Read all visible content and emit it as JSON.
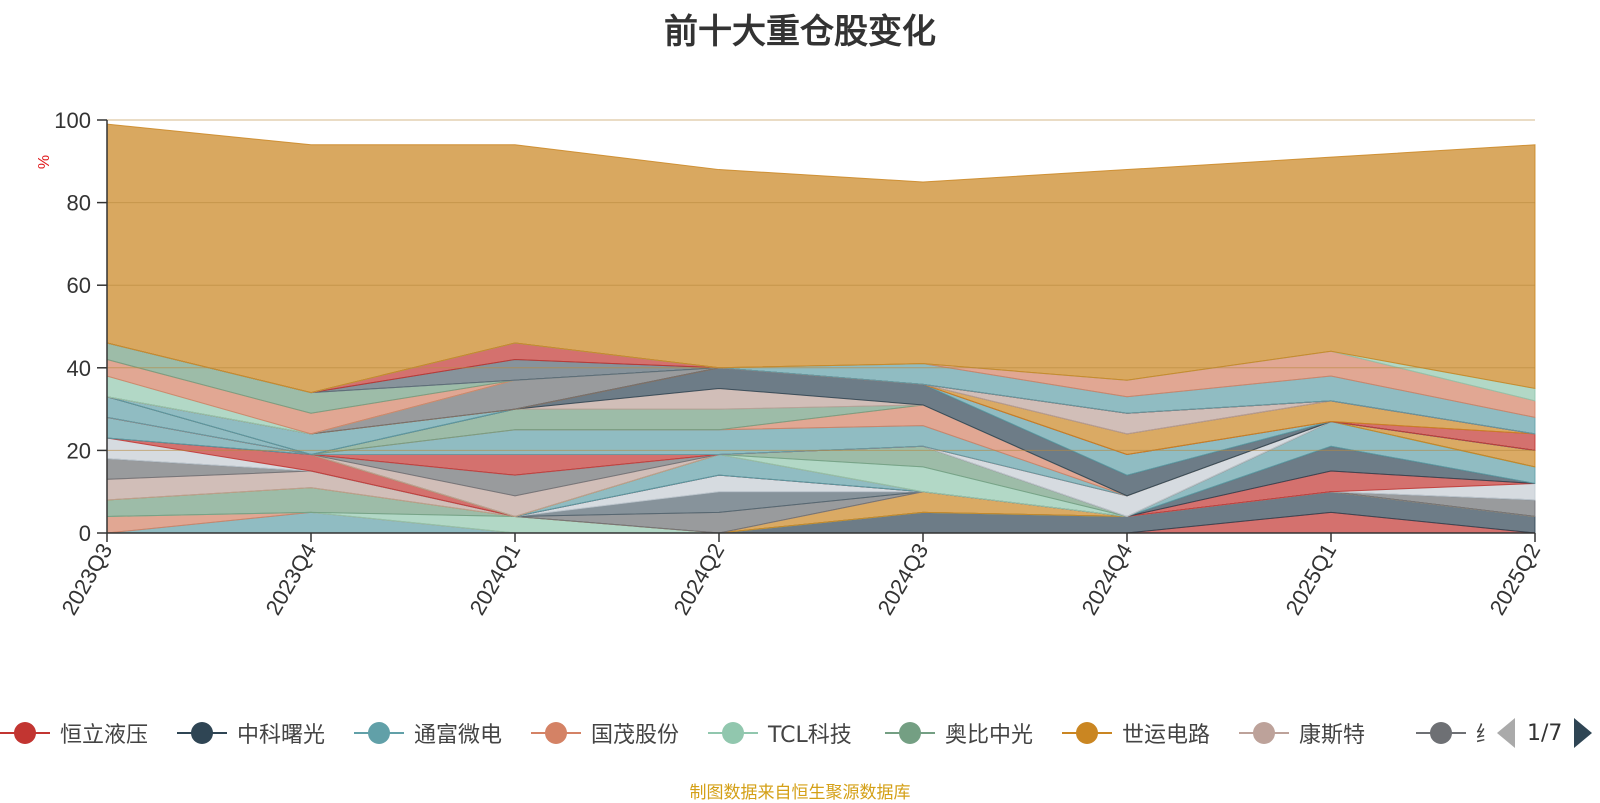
{
  "title": "前十大重仓股变化",
  "source": "制图数据来自恒生聚源数据库",
  "legend_pager": "1/7",
  "chart_data": {
    "type": "area",
    "stacked": true,
    "title": "前十大重仓股变化",
    "ylabel": "%",
    "ylim": [
      0,
      100
    ],
    "yticks": [
      0,
      20,
      40,
      60,
      80,
      100
    ],
    "grid": true,
    "legend_position": "bottom",
    "categories": [
      "2023Q3",
      "2023Q4",
      "2024Q1",
      "2024Q2",
      "2024Q3",
      "2024Q4",
      "2025Q1",
      "2025Q2"
    ],
    "series": [
      {
        "name": "恒立液压",
        "color": "#c23531",
        "values": [
          0,
          0,
          0,
          0,
          0,
          0,
          5,
          0
        ]
      },
      {
        "name": "中科曙光",
        "color": "#2f4554",
        "values": [
          0,
          0,
          0,
          0,
          5,
          4,
          5,
          4
        ]
      },
      {
        "name": "通富微电",
        "color": "#61a0a8",
        "values": [
          0,
          5,
          0,
          0,
          0,
          0,
          0,
          0
        ]
      },
      {
        "name": "国茂股份",
        "color": "#d48265",
        "values": [
          4,
          0,
          0,
          0,
          0,
          0,
          0,
          0
        ]
      },
      {
        "name": "TCL科技",
        "color": "#91c7ae",
        "values": [
          0,
          0,
          4,
          0,
          0,
          0,
          0,
          0
        ]
      },
      {
        "name": "奥比中光",
        "color": "#749f83",
        "values": [
          4,
          6,
          0,
          0,
          0,
          0,
          0,
          0
        ]
      },
      {
        "name": "世运电路",
        "color": "#ca8622",
        "values": [
          0,
          0,
          0,
          0,
          5,
          0,
          0,
          0
        ]
      },
      {
        "name": "康斯特",
        "color": "#bda29a",
        "values": [
          5,
          4,
          0,
          0,
          0,
          0,
          0,
          0
        ]
      },
      {
        "name": "继峰股份",
        "color": "#6e7074",
        "values": [
          5,
          0,
          0,
          5,
          0,
          0,
          0,
          4
        ]
      },
      {
        "name": "",
        "color": "#546570",
        "values": [
          0,
          0,
          0,
          5,
          0,
          0,
          0,
          0
        ]
      },
      {
        "name": "",
        "color": "#c4ccd3",
        "values": [
          5,
          0,
          0,
          4,
          0,
          0,
          0,
          4
        ]
      },
      {
        "name": "",
        "color": "#c23531",
        "values": [
          0,
          4,
          0,
          0,
          0,
          0,
          5,
          0
        ]
      },
      {
        "name": "",
        "color": "#2f4554",
        "values": [
          0,
          0,
          0,
          0,
          0,
          0,
          6,
          0
        ]
      },
      {
        "name": "",
        "color": "#61a0a8",
        "values": [
          5,
          0,
          0,
          5,
          0,
          0,
          6,
          4
        ]
      },
      {
        "name": "",
        "color": "#d48265",
        "values": [
          0,
          0,
          0,
          0,
          0,
          0,
          0,
          0
        ]
      },
      {
        "name": "",
        "color": "#91c7ae",
        "values": [
          0,
          0,
          0,
          0,
          6,
          0,
          0,
          0
        ]
      },
      {
        "name": "",
        "color": "#749f83",
        "values": [
          0,
          0,
          0,
          0,
          5,
          0,
          0,
          0
        ]
      },
      {
        "name": "",
        "color": "#ca8622",
        "values": [
          0,
          0,
          0,
          0,
          0,
          0,
          0,
          4
        ]
      },
      {
        "name": "",
        "color": "#bda29a",
        "values": [
          0,
          0,
          5,
          0,
          0,
          0,
          0,
          0
        ]
      },
      {
        "name": "",
        "color": "#6e7074",
        "values": [
          0,
          0,
          5,
          0,
          0,
          0,
          0,
          0
        ]
      },
      {
        "name": "",
        "color": "#546570",
        "values": [
          0,
          0,
          0,
          0,
          0,
          0,
          0,
          0
        ]
      },
      {
        "name": "",
        "color": "#c4ccd3",
        "values": [
          0,
          0,
          0,
          0,
          0,
          5,
          0,
          0
        ]
      },
      {
        "name": "",
        "color": "#c23531",
        "values": [
          0,
          0,
          5,
          0,
          0,
          0,
          0,
          0
        ]
      },
      {
        "name": "",
        "color": "#61a0a8",
        "values": [
          5,
          0,
          6,
          6,
          5,
          0,
          0,
          0
        ]
      },
      {
        "name": "",
        "color": "#d48265",
        "values": [
          0,
          0,
          0,
          0,
          5,
          0,
          0,
          0
        ]
      },
      {
        "name": "",
        "color": "#749f83",
        "values": [
          0,
          0,
          5,
          5,
          0,
          0,
          0,
          0
        ]
      },
      {
        "name": "",
        "color": "#bda29a",
        "values": [
          0,
          0,
          0,
          5,
          0,
          0,
          0,
          0
        ]
      },
      {
        "name": "",
        "color": "#2f4554",
        "values": [
          0,
          0,
          0,
          5,
          5,
          5,
          0,
          0
        ]
      },
      {
        "name": "",
        "color": "#61a0a8",
        "values": [
          0,
          5,
          0,
          0,
          0,
          5,
          0,
          0
        ]
      },
      {
        "name": "",
        "color": "#c23531",
        "values": [
          0,
          0,
          0,
          0,
          0,
          0,
          0,
          4
        ]
      },
      {
        "name": "",
        "color": "#ca8622",
        "values": [
          0,
          0,
          0,
          0,
          0,
          5,
          5,
          0
        ]
      },
      {
        "name": "",
        "color": "#6e7074",
        "values": [
          0,
          0,
          7,
          0,
          0,
          0,
          0,
          0
        ]
      },
      {
        "name": "",
        "color": "#bda29a",
        "values": [
          0,
          0,
          0,
          0,
          0,
          5,
          0,
          0
        ]
      },
      {
        "name": "",
        "color": "#91c7ae",
        "values": [
          5,
          0,
          0,
          0,
          0,
          0,
          0,
          0
        ]
      },
      {
        "name": "",
        "color": "#d48265",
        "values": [
          4,
          5,
          0,
          0,
          0,
          0,
          0,
          0
        ]
      },
      {
        "name": "",
        "color": "#749f83",
        "values": [
          4,
          5,
          0,
          0,
          0,
          0,
          0,
          0
        ]
      },
      {
        "name": "",
        "color": "#6e7074",
        "values": [
          0,
          0,
          0,
          0,
          0,
          0,
          0,
          0
        ]
      },
      {
        "name": "",
        "color": "#c4ccd3",
        "values": [
          0,
          0,
          0,
          0,
          0,
          0,
          0,
          0
        ]
      },
      {
        "name": "",
        "color": "#546570",
        "values": [
          0,
          0,
          5,
          0,
          0,
          0,
          0,
          0
        ]
      },
      {
        "name": "",
        "color": "#c23531",
        "values": [
          0,
          0,
          4,
          0,
          0,
          0,
          0,
          0
        ]
      },
      {
        "name": "",
        "color": "#61a0a8",
        "values": [
          0,
          0,
          0,
          0,
          5,
          4,
          6,
          4
        ]
      },
      {
        "name": "",
        "color": "#d48265",
        "values": [
          0,
          0,
          0,
          0,
          0,
          4,
          6,
          4
        ]
      },
      {
        "name": "",
        "color": "#91c7ae",
        "values": [
          0,
          0,
          0,
          0,
          0,
          0,
          0,
          3
        ]
      },
      {
        "name": "",
        "color": "#ca8622",
        "values": [
          53,
          60,
          48,
          48,
          44,
          51,
          47,
          59
        ]
      }
    ]
  }
}
